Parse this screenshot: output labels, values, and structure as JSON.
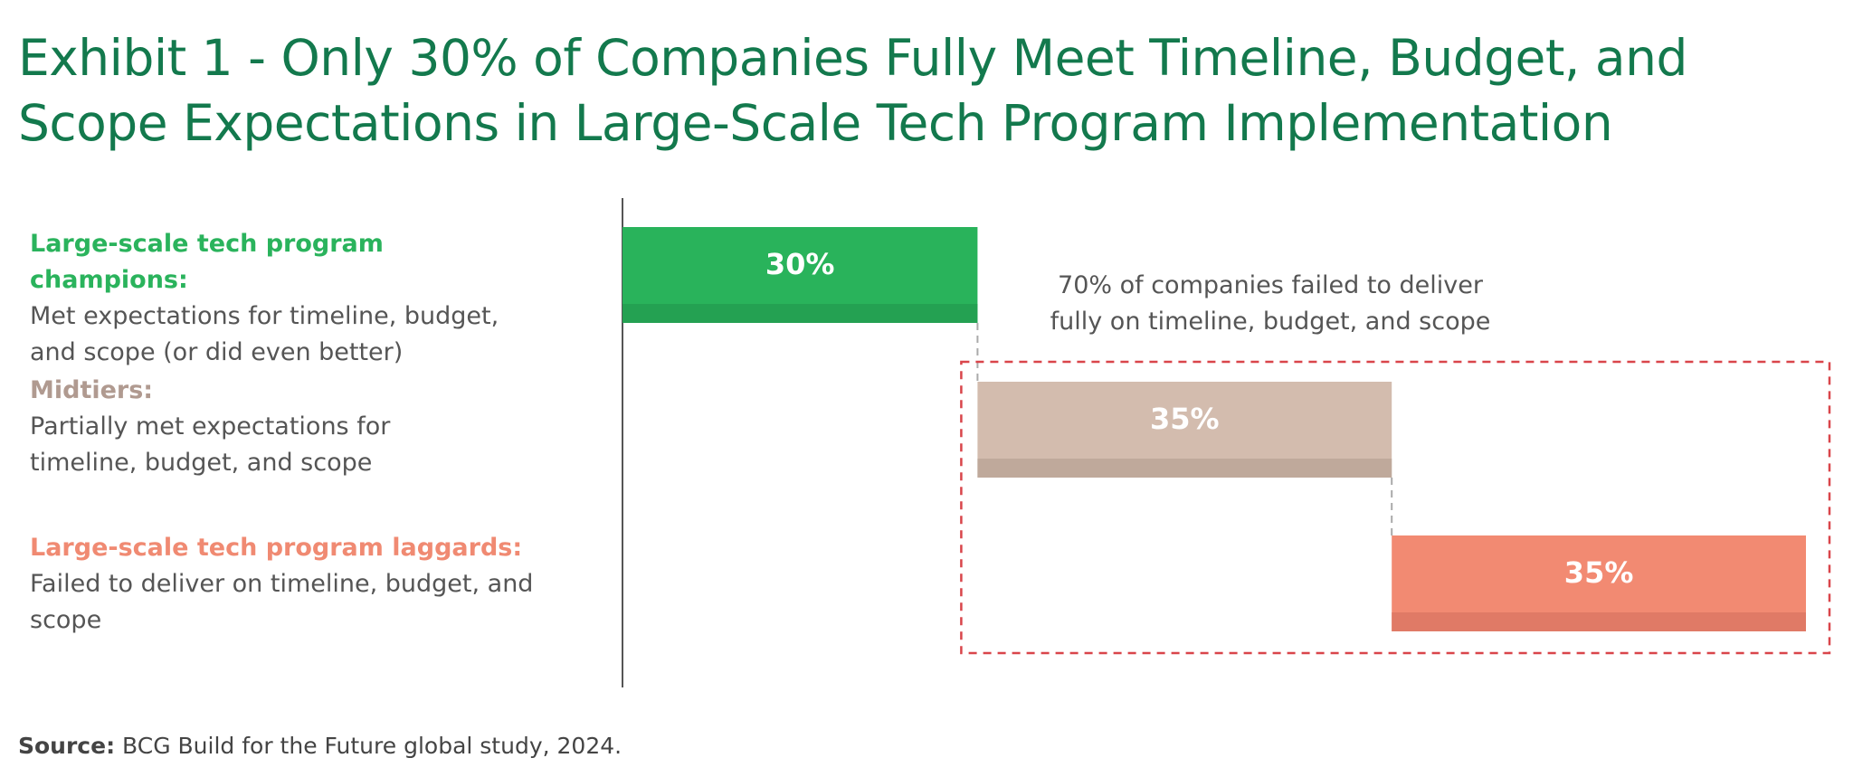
{
  "title": "Exhibit 1 - Only 30% of Companies Fully Meet Timeline, Budget, and Scope Expectations in Large-Scale Tech Program Implementation",
  "chart_data": {
    "type": "bar",
    "orientation": "horizontal-waterfall",
    "categories": [
      {
        "heading": "Large-scale tech program champions:",
        "description": "Met expectations for timeline, budget, and scope (or did even better)",
        "color": "#29b35b",
        "shade": "#24a152"
      },
      {
        "heading": "Midtiers:",
        "description": "Partially met expectations for timeline, budget, and scope",
        "color": "#d3bcae",
        "shade": "#bfa99b"
      },
      {
        "heading": "Large-scale tech program laggards:",
        "description": "Failed to deliver on timeline, budget, and scope",
        "color": "#f28a72",
        "shade": "#e07a66"
      }
    ],
    "values": [
      30,
      35,
      35
    ],
    "data_labels": [
      "30%",
      "35%",
      "35%"
    ],
    "heading_colors": [
      "#2ab35c",
      "#b09a90",
      "#f08a72"
    ],
    "annotation": "70% of companies failed to deliver fully on timeline, budget, and scope",
    "annotation_box_color": "#d9454a",
    "xlim": [
      0,
      100
    ],
    "grid": false
  },
  "source": {
    "label": "Source:",
    "text": " BCG Build for the Future global study, 2024."
  }
}
